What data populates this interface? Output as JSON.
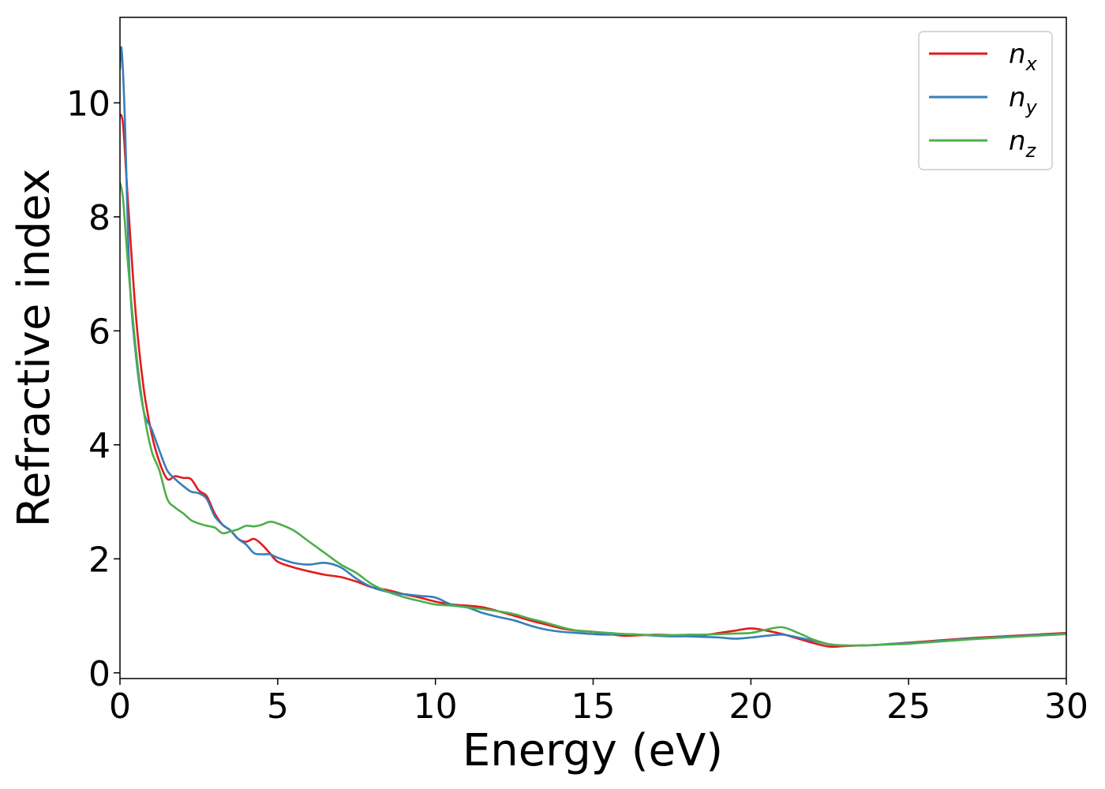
{
  "chart_data": {
    "type": "line",
    "xlabel": "Energy (eV)",
    "ylabel": "Refractive index",
    "xlim": [
      0,
      30
    ],
    "ylim": [
      -0.1,
      11.5
    ],
    "xticks": [
      0,
      5,
      10,
      15,
      20,
      25,
      30
    ],
    "yticks": [
      0,
      2,
      4,
      6,
      8,
      10
    ],
    "xtick_labels": [
      "0",
      "5",
      "10",
      "15",
      "20",
      "25",
      "30"
    ],
    "ytick_labels": [
      "0",
      "2",
      "4",
      "6",
      "8",
      "10"
    ],
    "grid": false,
    "legend_position": "top-right",
    "series": [
      {
        "name": "n_x",
        "label_base": "n",
        "label_sub": "x",
        "color": "#e41a1c",
        "x": [
          0,
          0.1,
          0.25,
          0.5,
          0.75,
          1.0,
          1.25,
          1.5,
          1.75,
          2.0,
          2.25,
          2.5,
          2.75,
          3.0,
          3.25,
          3.5,
          3.75,
          4.0,
          4.25,
          4.5,
          4.75,
          5.0,
          5.5,
          6.0,
          6.5,
          7.0,
          7.5,
          8.0,
          8.5,
          9.0,
          9.5,
          10.0,
          10.5,
          11.0,
          11.5,
          12.0,
          12.5,
          13.0,
          13.5,
          14.0,
          14.5,
          15.0,
          15.5,
          16.0,
          16.5,
          17.0,
          17.5,
          18.0,
          18.5,
          19.0,
          19.5,
          20.0,
          20.5,
          21.0,
          21.5,
          22.0,
          22.5,
          23.0,
          23.5,
          24.0,
          24.5,
          25.0,
          26.0,
          27.0,
          28.0,
          29.0,
          30.0
        ],
        "y": [
          9.8,
          9.6,
          8.3,
          6.3,
          5.0,
          4.2,
          3.7,
          3.4,
          3.45,
          3.42,
          3.4,
          3.2,
          3.1,
          2.8,
          2.6,
          2.5,
          2.35,
          2.3,
          2.35,
          2.25,
          2.1,
          1.95,
          1.85,
          1.78,
          1.72,
          1.68,
          1.6,
          1.5,
          1.45,
          1.38,
          1.32,
          1.25,
          1.2,
          1.18,
          1.15,
          1.08,
          1.0,
          0.92,
          0.85,
          0.78,
          0.74,
          0.72,
          0.68,
          0.65,
          0.66,
          0.67,
          0.66,
          0.65,
          0.66,
          0.7,
          0.74,
          0.78,
          0.74,
          0.68,
          0.6,
          0.52,
          0.46,
          0.47,
          0.48,
          0.49,
          0.51,
          0.53,
          0.57,
          0.61,
          0.64,
          0.67,
          0.7
        ]
      },
      {
        "name": "n_y",
        "label_base": "n",
        "label_sub": "y",
        "color": "#377eb8",
        "x": [
          0,
          0.05,
          0.15,
          0.3,
          0.5,
          0.75,
          1.0,
          1.25,
          1.5,
          1.75,
          2.0,
          2.25,
          2.5,
          2.75,
          3.0,
          3.25,
          3.5,
          3.75,
          4.0,
          4.25,
          4.5,
          4.75,
          5.0,
          5.5,
          6.0,
          6.5,
          7.0,
          7.5,
          8.0,
          8.5,
          9.0,
          9.5,
          10.0,
          10.5,
          11.0,
          11.5,
          12.0,
          12.5,
          13.0,
          13.5,
          14.0,
          14.5,
          15.0,
          15.5,
          16.0,
          16.5,
          17.0,
          17.5,
          18.0,
          18.5,
          19.0,
          19.5,
          20.0,
          20.5,
          21.0,
          21.5,
          22.0,
          22.5,
          23.0,
          23.5,
          24.0,
          24.5,
          25.0,
          26.0,
          27.0,
          28.0,
          29.0,
          30.0
        ],
        "y": [
          10.6,
          10.95,
          9.8,
          7.0,
          5.6,
          4.6,
          4.28,
          3.9,
          3.55,
          3.4,
          3.28,
          3.18,
          3.15,
          3.05,
          2.75,
          2.6,
          2.5,
          2.35,
          2.25,
          2.1,
          2.08,
          2.08,
          2.02,
          1.93,
          1.9,
          1.93,
          1.85,
          1.65,
          1.5,
          1.42,
          1.38,
          1.35,
          1.32,
          1.2,
          1.15,
          1.05,
          0.98,
          0.92,
          0.83,
          0.76,
          0.72,
          0.7,
          0.68,
          0.67,
          0.68,
          0.67,
          0.65,
          0.64,
          0.64,
          0.63,
          0.62,
          0.6,
          0.62,
          0.65,
          0.67,
          0.62,
          0.56,
          0.5,
          0.48,
          0.48,
          0.49,
          0.51,
          0.52,
          0.56,
          0.6,
          0.63,
          0.66,
          0.69
        ]
      },
      {
        "name": "n_z",
        "label_base": "n",
        "label_sub": "z",
        "color": "#4daf4a",
        "x": [
          0,
          0.1,
          0.25,
          0.5,
          0.75,
          1.0,
          1.25,
          1.5,
          1.75,
          2.0,
          2.25,
          2.5,
          2.75,
          3.0,
          3.25,
          3.5,
          3.75,
          4.0,
          4.25,
          4.5,
          4.75,
          5.0,
          5.5,
          6.0,
          6.5,
          7.0,
          7.5,
          8.0,
          8.5,
          9.0,
          9.5,
          10.0,
          10.5,
          11.0,
          11.5,
          12.0,
          12.5,
          13.0,
          13.5,
          14.0,
          14.5,
          15.0,
          15.5,
          16.0,
          16.5,
          17.0,
          17.5,
          18.0,
          18.5,
          19.0,
          19.5,
          20.0,
          20.5,
          21.0,
          21.5,
          22.0,
          22.5,
          23.0,
          23.5,
          24.0,
          24.5,
          25.0,
          26.0,
          27.0,
          28.0,
          29.0,
          30.0
        ],
        "y": [
          8.6,
          8.3,
          7.2,
          5.7,
          4.6,
          3.9,
          3.55,
          3.05,
          2.9,
          2.8,
          2.68,
          2.62,
          2.58,
          2.55,
          2.45,
          2.48,
          2.52,
          2.58,
          2.57,
          2.6,
          2.65,
          2.62,
          2.5,
          2.3,
          2.1,
          1.9,
          1.75,
          1.55,
          1.42,
          1.33,
          1.26,
          1.2,
          1.18,
          1.15,
          1.12,
          1.08,
          1.03,
          0.95,
          0.88,
          0.8,
          0.74,
          0.72,
          0.7,
          0.68,
          0.67,
          0.66,
          0.66,
          0.67,
          0.67,
          0.68,
          0.69,
          0.7,
          0.76,
          0.8,
          0.7,
          0.58,
          0.5,
          0.48,
          0.48,
          0.49,
          0.5,
          0.51,
          0.55,
          0.59,
          0.62,
          0.65,
          0.68
        ]
      }
    ]
  }
}
